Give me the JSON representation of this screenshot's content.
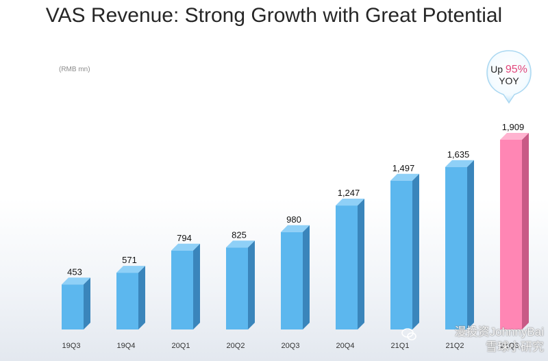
{
  "title": "VAS Revenue: Strong Growth with Great Potential",
  "unit": "(RMB mn)",
  "callout": {
    "prefix": "Up",
    "percent": "95%",
    "suffix": "YOY"
  },
  "watermark": {
    "line1": "漫投资JohnnyBai",
    "line2": "雪球小研究"
  },
  "colors": {
    "bar": "#5cb7ee",
    "bar_side": "#3a85bb",
    "bar_top": "#8fd0f7",
    "highlight": "#ff86b4",
    "highlight_side": "#c85a86",
    "highlight_top": "#ffb3d0"
  },
  "chart_data": {
    "type": "bar",
    "title": "VAS Revenue: Strong Growth with Great Potential",
    "ylabel": "(RMB mn)",
    "xlabel": "",
    "ylim": [
      0,
      2000
    ],
    "categories": [
      "19Q3",
      "19Q4",
      "20Q1",
      "20Q2",
      "20Q3",
      "20Q4",
      "21Q1",
      "21Q2",
      "21Q3"
    ],
    "values": [
      453,
      571,
      794,
      825,
      980,
      1247,
      1497,
      1635,
      1909
    ],
    "value_labels": [
      "453",
      "571",
      "794",
      "825",
      "980",
      "1,247",
      "1,497",
      "1,635",
      "1,909"
    ],
    "highlight_index": 8,
    "annotations": [
      "Up 95% YOY"
    ]
  }
}
